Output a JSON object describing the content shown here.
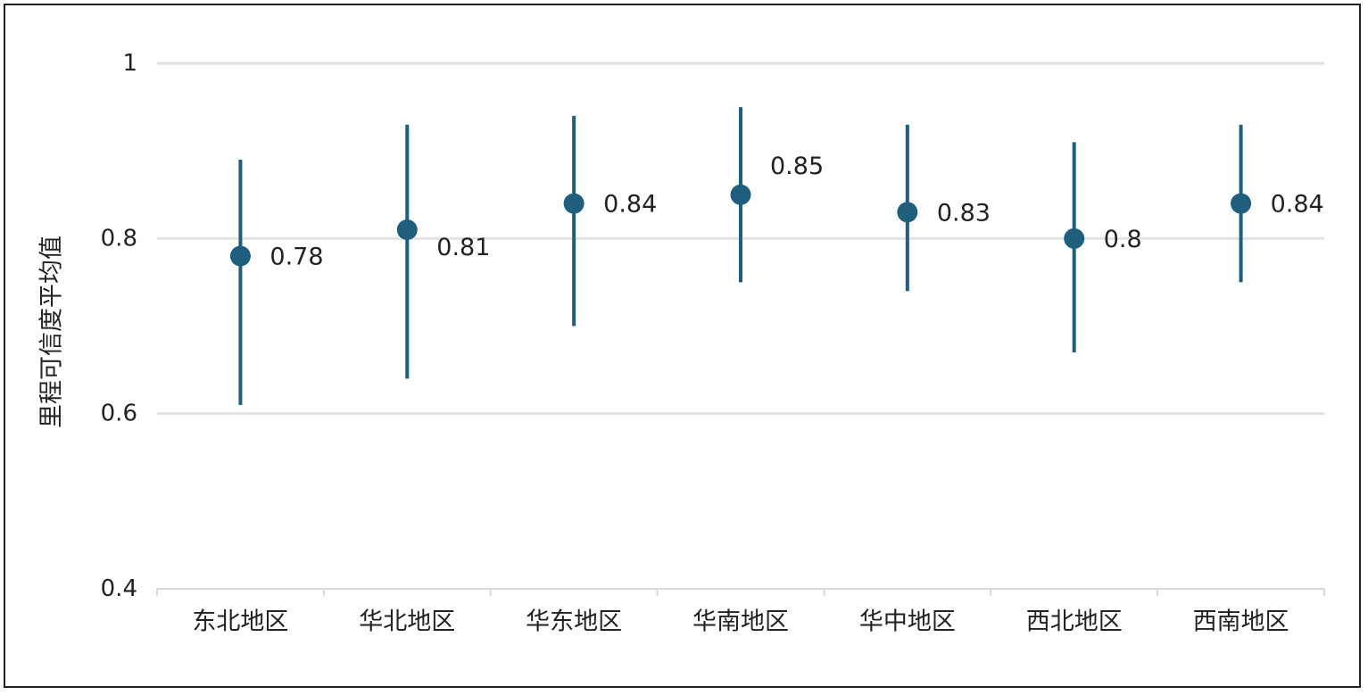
{
  "chart_data": {
    "type": "scatter",
    "style": "point-with-error-bars",
    "ylabel": "里程可信度平均值",
    "xlabel": "",
    "ylim": [
      0.4,
      1.0
    ],
    "yticks": [
      "0.4",
      "0.6",
      "0.8",
      "1"
    ],
    "ytick_values": [
      0.4,
      0.6,
      0.8,
      1.0
    ],
    "grid": true,
    "categories": [
      "东北地区",
      "华北地区",
      "华东地区",
      "华南地区",
      "华中地区",
      "西北地区",
      "西南地区"
    ],
    "values": [
      0.78,
      0.81,
      0.84,
      0.85,
      0.83,
      0.8,
      0.84
    ],
    "value_labels": [
      "0.78",
      "0.81",
      "0.84",
      "0.85",
      "0.83",
      "0.8",
      "0.84"
    ],
    "lower": [
      0.61,
      0.64,
      0.7,
      0.75,
      0.74,
      0.67,
      0.75
    ],
    "upper": [
      0.89,
      0.93,
      0.94,
      0.95,
      0.93,
      0.91,
      0.93
    ],
    "color": "#1f5f7d",
    "grid_color": "#e2e2e2"
  }
}
